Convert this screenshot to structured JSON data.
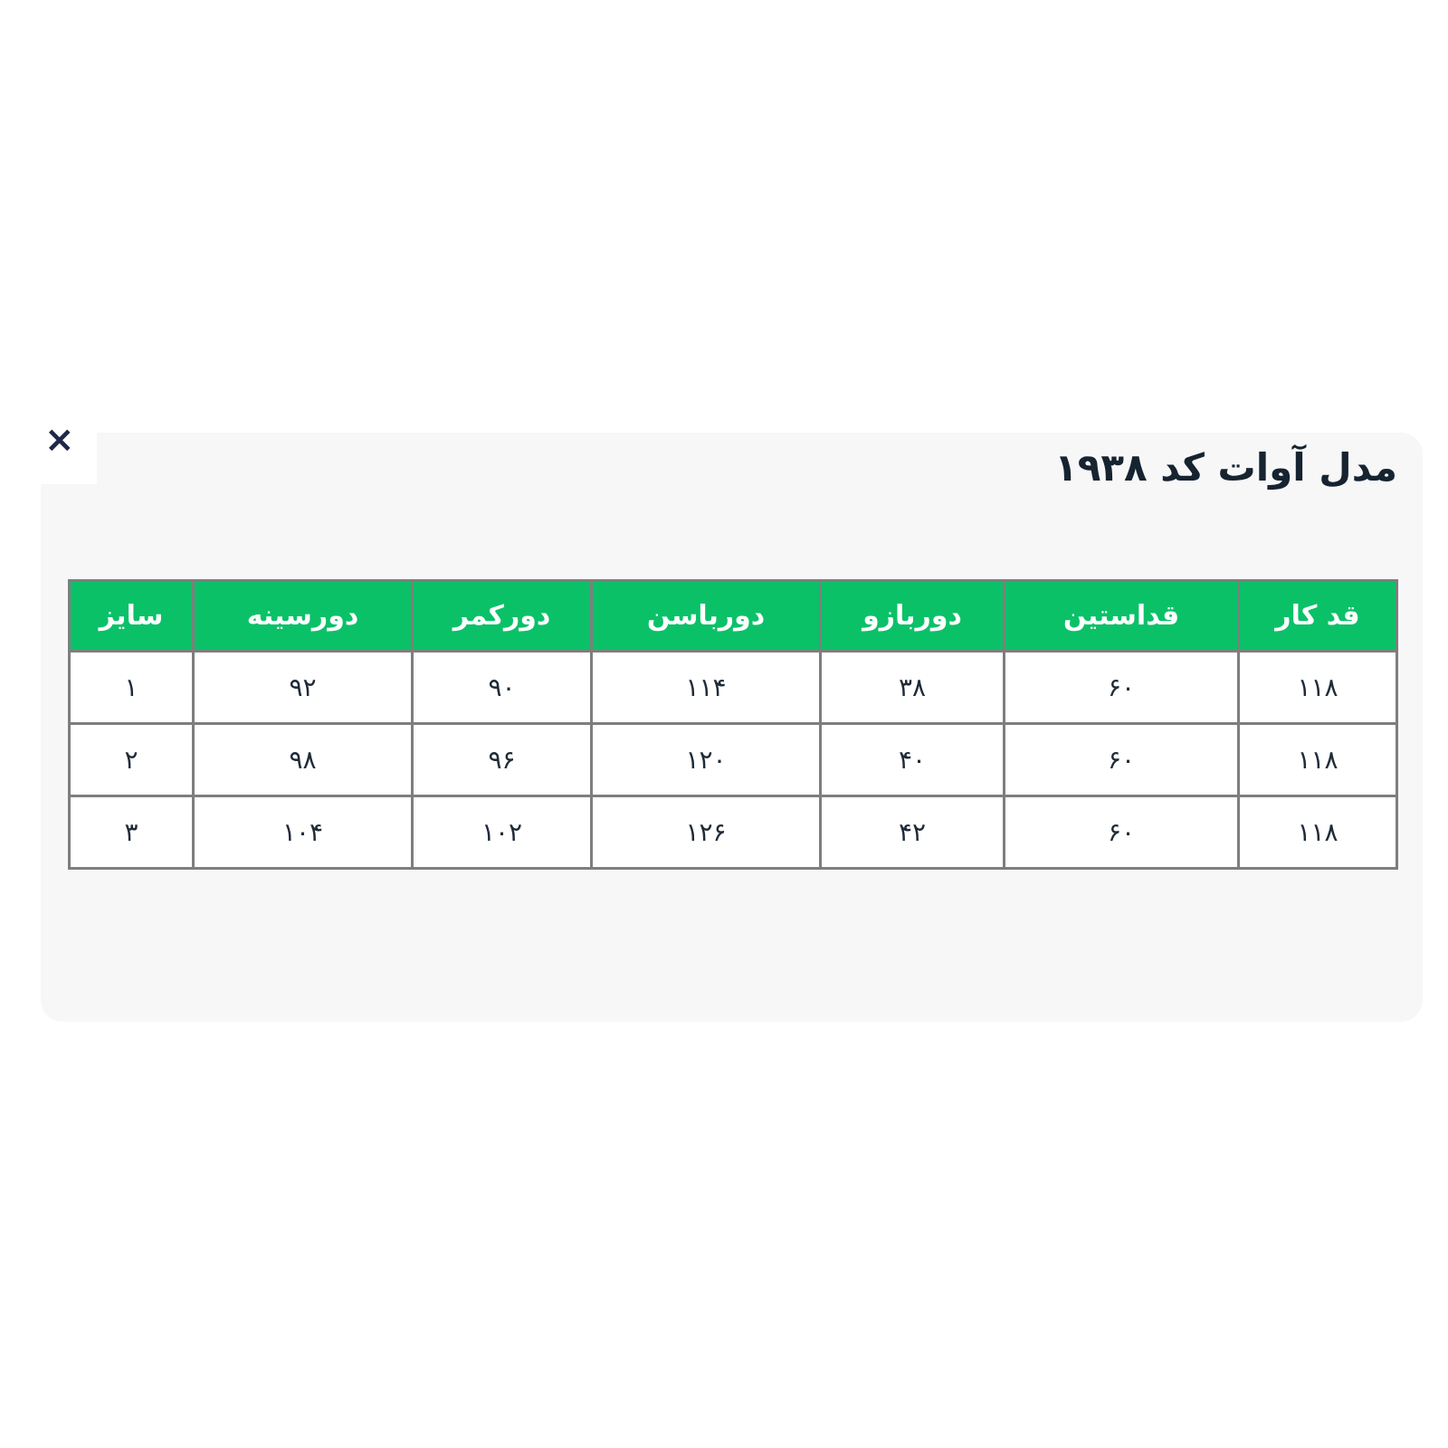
{
  "modal": {
    "title": "مدل آوات کد ۱۹۳۸",
    "close_label": "×"
  },
  "table": {
    "columns": [
      "قد کار",
      "قداستین",
      "دوربازو",
      "دورباسن",
      "دورکمر",
      "دورسینه",
      "سایز"
    ],
    "rows": [
      [
        "۱۱۸",
        "۶۰",
        "۳۸",
        "۱۱۴",
        "۹۰",
        "۹۲",
        "۱"
      ],
      [
        "۱۱۸",
        "۶۰",
        "۴۰",
        "۱۲۰",
        "۹۶",
        "۹۸",
        "۲"
      ],
      [
        "۱۱۸",
        "۶۰",
        "۴۲",
        "۱۲۶",
        "۱۰۲",
        "۱۰۴",
        "۳"
      ]
    ]
  },
  "colors": {
    "header_green": "#0bc168",
    "panel_background": "#f7f7f8",
    "table_border": "#7e7e7e",
    "text_dark": "#202b38"
  }
}
